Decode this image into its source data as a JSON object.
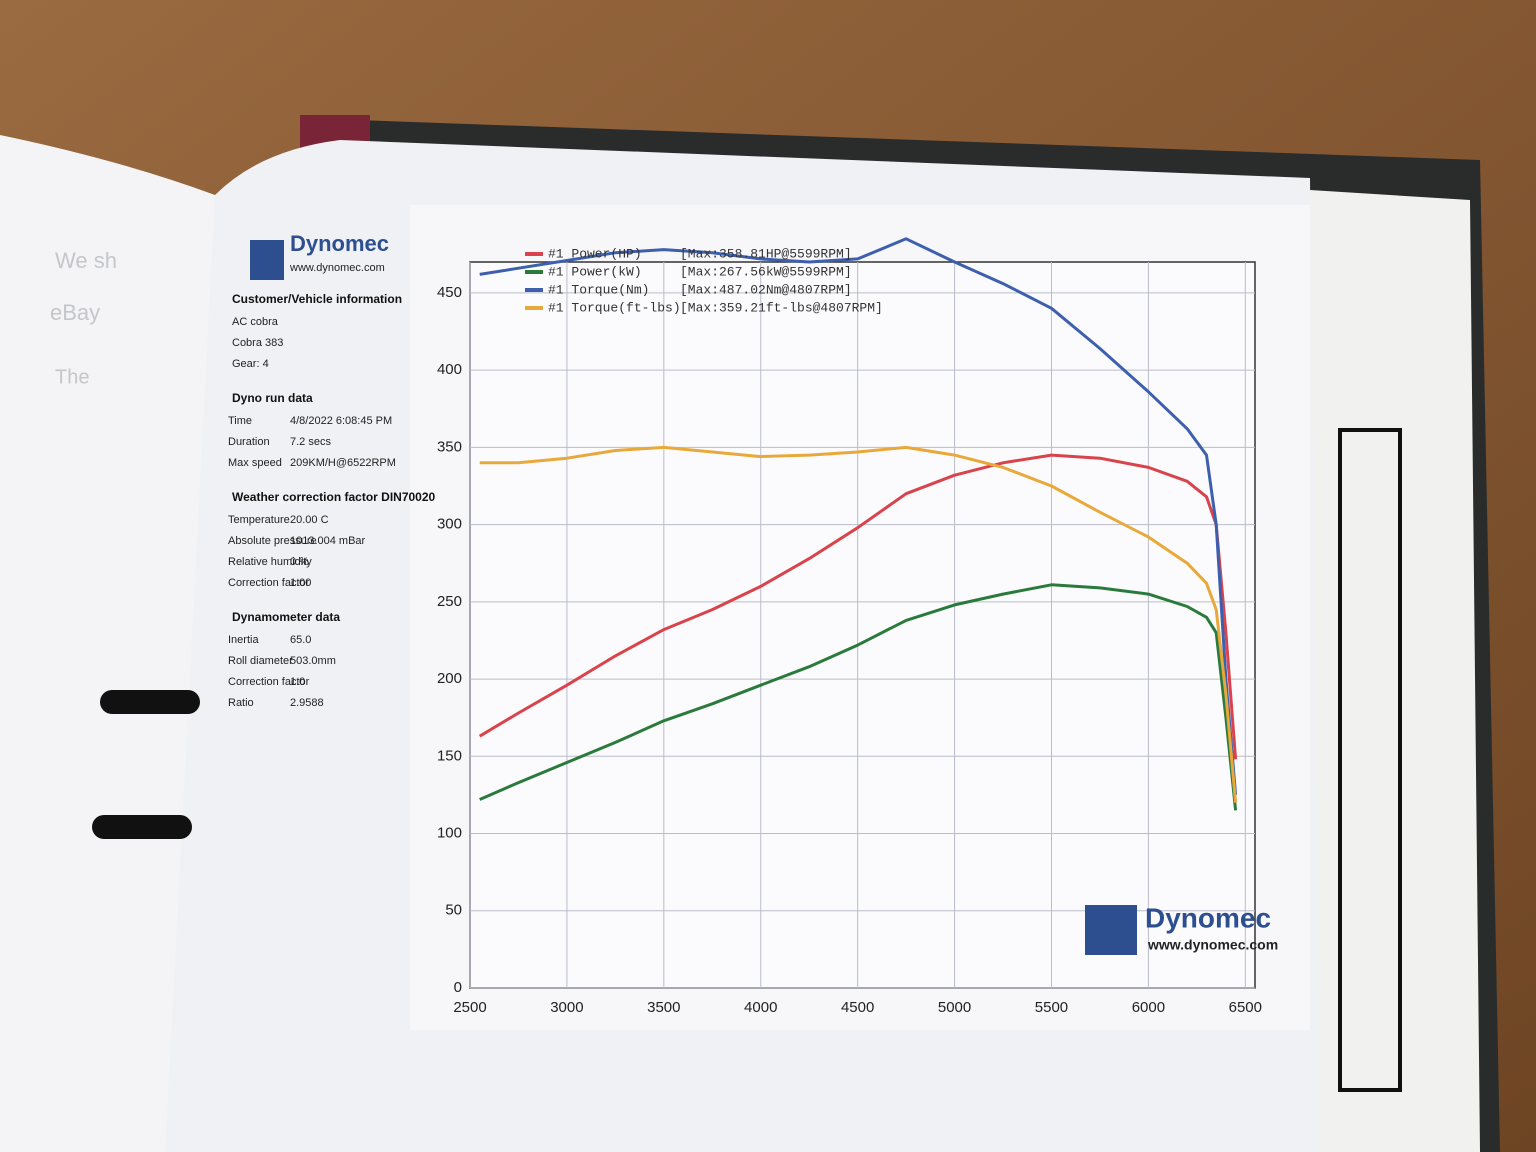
{
  "left_page": {
    "fragments": [
      "We sh",
      "eBay",
      "The"
    ]
  },
  "info_panel": {
    "logo_name": "Dynomec",
    "logo_url": "www.dynomec.com",
    "sections": [
      {
        "title": "Customer/Vehicle information",
        "rows": [
          [
            "AC cobra"
          ],
          [
            "Cobra 383"
          ],
          [
            "Gear: 4"
          ]
        ]
      },
      {
        "title": "Dyno run data",
        "rows": [
          [
            "Time",
            "4/8/2022 6:08:45 PM"
          ],
          [
            "Duration",
            "7.2 secs"
          ],
          [
            "Max speed",
            "209KM/H@6522RPM"
          ]
        ]
      },
      {
        "title": "Weather correction factor DIN70020",
        "rows": [
          [
            "Temperature",
            "20.00 C"
          ],
          [
            "Absolute pressure",
            "1013.004 mBar"
          ],
          [
            "Relative humidity",
            "0 %"
          ],
          [
            "Correction factor",
            "1.00"
          ]
        ]
      },
      {
        "title": "Dynamometer data",
        "rows": [
          [
            "Inertia",
            "65.0"
          ],
          [
            "Roll diameter",
            "503.0mm"
          ],
          [
            "Correction factor",
            "1.0"
          ],
          [
            "Ratio",
            "2.9588"
          ]
        ]
      }
    ]
  },
  "chart_data": {
    "type": "line",
    "x": [
      2550,
      2750,
      3000,
      3250,
      3500,
      3750,
      4000,
      4250,
      4500,
      4750,
      5000,
      5250,
      5500,
      5750,
      6000,
      6200,
      6300,
      6350,
      6400,
      6450
    ],
    "series": [
      {
        "name": "#1 Power(HP)",
        "max_label": "[Max:358.81HP@5599RPM]",
        "color": "#d9434b",
        "values": [
          163,
          178,
          196,
          215,
          232,
          245,
          260,
          278,
          298,
          320,
          332,
          340,
          345,
          343,
          337,
          328,
          318,
          300,
          230,
          148
        ]
      },
      {
        "name": "#1 Power(kW)",
        "max_label": "[Max:267.56kW@5599RPM]",
        "color": "#2a7a3c",
        "values": [
          122,
          133,
          146,
          159,
          173,
          184,
          196,
          208,
          222,
          238,
          248,
          255,
          261,
          259,
          255,
          247,
          240,
          230,
          175,
          115
        ]
      },
      {
        "name": "#1 Torque(Nm)",
        "max_label": "[Max:487.02Nm@4807RPM]",
        "color": "#3d5fae",
        "values": [
          462,
          466,
          471,
          476,
          478,
          476,
          472,
          470,
          472,
          485,
          470,
          456,
          440,
          414,
          386,
          362,
          345,
          300,
          200,
          125
        ]
      },
      {
        "name": "#1 Torque(ft-lbs)",
        "max_label": "[Max:359.21ft-lbs@4807RPM]",
        "color": "#e9a93a",
        "values": [
          340,
          340,
          343,
          348,
          350,
          347,
          344,
          345,
          347,
          350,
          345,
          337,
          325,
          308,
          292,
          275,
          262,
          245,
          190,
          120
        ]
      }
    ],
    "xlim": [
      2500,
      6550
    ],
    "xticks": [
      2500,
      3000,
      3500,
      4000,
      4500,
      5000,
      5500,
      6000,
      6500
    ],
    "ylim": [
      0,
      470
    ],
    "yticks": [
      0,
      50,
      100,
      150,
      200,
      250,
      300,
      350,
      400,
      450
    ],
    "grid": true,
    "legend": "top-left",
    "logo_name": "Dynomec",
    "logo_url": "www.dynomec.com"
  }
}
